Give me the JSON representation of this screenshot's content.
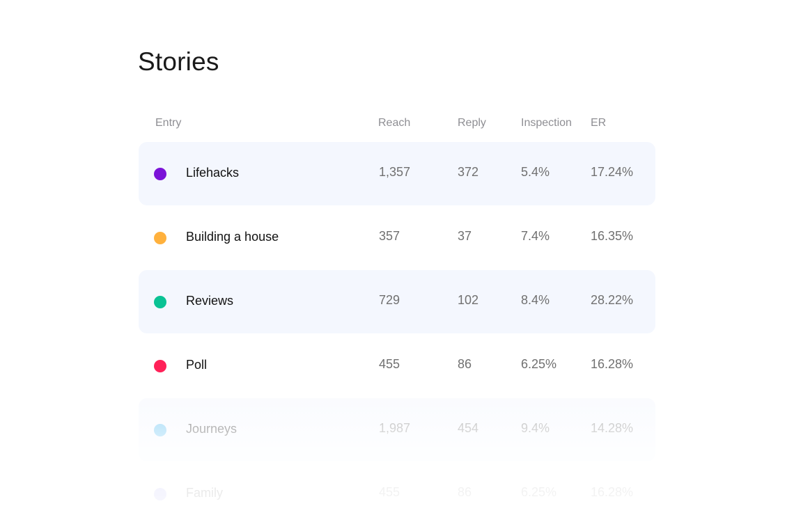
{
  "title": "Stories",
  "columns": {
    "entry": "Entry",
    "reach": "Reach",
    "reply": "Reply",
    "inspection": "Inspection",
    "er": "ER"
  },
  "rows": [
    {
      "name": "Lifehacks",
      "color": "#7b13d8",
      "reach": "1,357",
      "reply": "372",
      "inspection": "5.4%",
      "er": "17.24%"
    },
    {
      "name": "Building a house",
      "color": "#ffb13d",
      "reach": "357",
      "reply": "37",
      "inspection": "7.4%",
      "er": "16.35%"
    },
    {
      "name": "Reviews",
      "color": "#0ac294",
      "reach": "729",
      "reply": "102",
      "inspection": "8.4%",
      "er": "28.22%"
    },
    {
      "name": "Poll",
      "color": "#ff2158",
      "reach": "455",
      "reply": "86",
      "inspection": "6.25%",
      "er": "16.28%"
    },
    {
      "name": "Journeys",
      "color": "#47b6f0",
      "reach": "1,987",
      "reply": "454",
      "inspection": "9.4%",
      "er": "14.28%"
    },
    {
      "name": "Family",
      "color": "#8c8cf0",
      "reach": "455",
      "reply": "86",
      "inspection": "6.25%",
      "er": "16.28%"
    }
  ]
}
